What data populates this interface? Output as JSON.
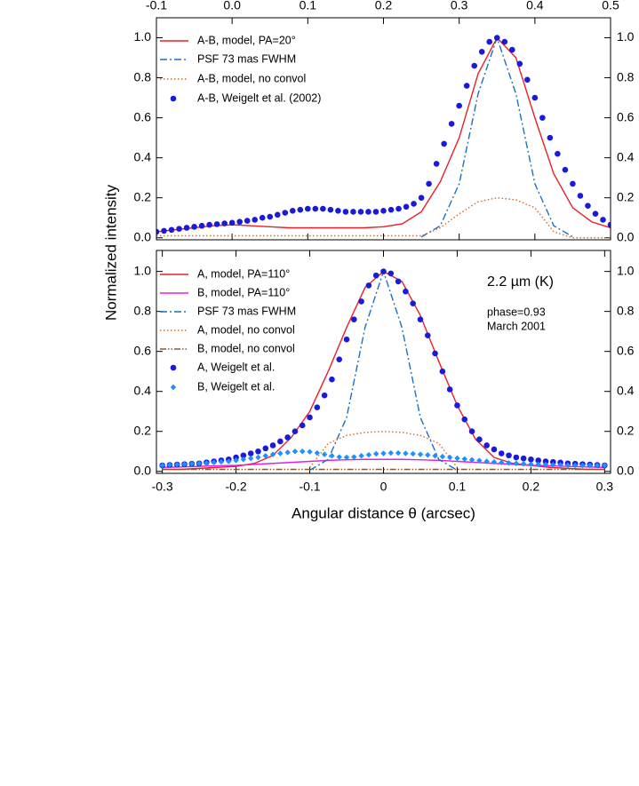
{
  "chart_data": [
    {
      "type": "line",
      "xaxis": "top",
      "xlim": [
        -0.1,
        0.5
      ],
      "ylim": [
        -0.01,
        1.1
      ],
      "xticks": [
        -0.1,
        {
          "value": 0,
          "label": "0.0"
        },
        0.1,
        0.2,
        0.3,
        0.4,
        0.5
      ],
      "yticks": [
        {
          "value": 0,
          "label": "0.0"
        },
        0.2,
        0.4,
        0.6,
        0.8,
        {
          "value": 1,
          "label": "1.0"
        }
      ],
      "x": [
        -0.1,
        -0.075,
        -0.05,
        -0.025,
        0,
        0.025,
        0.05,
        0.075,
        0.1,
        0.125,
        0.15,
        0.175,
        0.2,
        0.225,
        0.25,
        0.275,
        0.3,
        0.325,
        0.35,
        0.375,
        0.4,
        0.425,
        0.45,
        0.475,
        0.5
      ],
      "series": [
        {
          "name": "A-B, model, PA=20°",
          "color": "#e8202a",
          "style": "solid",
          "values": [
            0.03,
            0.04,
            0.05,
            0.06,
            0.065,
            0.06,
            0.055,
            0.05,
            0.05,
            0.05,
            0.05,
            0.05,
            0.055,
            0.07,
            0.13,
            0.28,
            0.5,
            0.82,
            1.0,
            0.9,
            0.6,
            0.32,
            0.15,
            0.08,
            0.05
          ]
        },
        {
          "name": "PSF 73 mas FWHM",
          "color": "#1f6fc0",
          "style": "dashdot",
          "values": [
            null,
            null,
            null,
            null,
            null,
            null,
            null,
            null,
            null,
            null,
            null,
            null,
            null,
            null,
            0.004,
            0.06,
            0.27,
            0.72,
            1.0,
            0.72,
            0.27,
            0.06,
            0.005,
            null,
            null
          ]
        },
        {
          "name": "A-B, model, no convol",
          "color": "#d2691e",
          "style": "dotted",
          "values": [
            0.01,
            0.01,
            0.01,
            0.01,
            0.01,
            0.01,
            0.01,
            0.01,
            0.01,
            0.01,
            0.01,
            0.01,
            0.01,
            0.01,
            0.01,
            0.05,
            0.12,
            0.18,
            0.2,
            0.19,
            0.15,
            0.03,
            0.0,
            0.0,
            0.0
          ]
        },
        {
          "name": "A-B, Weigelt et al. (2002)",
          "color": "#1a1adb",
          "style": "dots",
          "x": [
            -0.1,
            -0.09,
            -0.08,
            -0.07,
            -0.06,
            -0.05,
            -0.04,
            -0.03,
            -0.02,
            -0.01,
            0,
            0.01,
            0.02,
            0.03,
            0.04,
            0.05,
            0.06,
            0.07,
            0.08,
            0.09,
            0.1,
            0.11,
            0.12,
            0.13,
            0.14,
            0.15,
            0.16,
            0.17,
            0.18,
            0.19,
            0.2,
            0.21,
            0.22,
            0.23,
            0.24,
            0.25,
            0.26,
            0.27,
            0.28,
            0.29,
            0.3,
            0.31,
            0.32,
            0.33,
            0.34,
            0.35,
            0.36,
            0.37,
            0.38,
            0.39,
            0.4,
            0.41,
            0.42,
            0.43,
            0.44,
            0.45,
            0.46,
            0.47,
            0.48,
            0.49,
            0.5
          ],
          "values": [
            0.03,
            0.035,
            0.04,
            0.045,
            0.05,
            0.055,
            0.06,
            0.065,
            0.068,
            0.072,
            0.075,
            0.08,
            0.085,
            0.09,
            0.1,
            0.105,
            0.115,
            0.125,
            0.135,
            0.14,
            0.145,
            0.145,
            0.145,
            0.14,
            0.135,
            0.13,
            0.13,
            0.13,
            0.13,
            0.13,
            0.135,
            0.14,
            0.145,
            0.155,
            0.17,
            0.2,
            0.27,
            0.37,
            0.47,
            0.57,
            0.66,
            0.76,
            0.86,
            0.93,
            0.98,
            1.0,
            0.98,
            0.94,
            0.87,
            0.79,
            0.7,
            0.6,
            0.5,
            0.42,
            0.34,
            0.27,
            0.21,
            0.16,
            0.12,
            0.09,
            0.065
          ]
        }
      ]
    },
    {
      "type": "line",
      "xaxis": "bottom",
      "xlim": [
        -0.308,
        0.308
      ],
      "ylim": [
        -0.01,
        1.105
      ],
      "xticks": [
        -0.3,
        -0.2,
        -0.1,
        0,
        0.1,
        0.2,
        0.3
      ],
      "yticks": [
        {
          "value": 0,
          "label": "0.0"
        },
        0.2,
        0.4,
        0.6,
        0.8,
        {
          "value": 1,
          "label": "1.0"
        }
      ],
      "xlabel": "Angular distance  θ (arcsec)",
      "ylabel": "Normalized  intensity",
      "annotations": [
        "2.2 µm (K)",
        "phase=0.93",
        "March 2001"
      ],
      "x": [
        -0.3,
        -0.275,
        -0.25,
        -0.225,
        -0.2,
        -0.175,
        -0.15,
        -0.125,
        -0.1,
        -0.075,
        -0.05,
        -0.025,
        0,
        0.025,
        0.05,
        0.075,
        0.1,
        0.125,
        0.15,
        0.175,
        0.2,
        0.225,
        0.25,
        0.275,
        0.3
      ],
      "series": [
        {
          "name": "A, model, PA=110°",
          "color": "#e8202a",
          "style": "solid",
          "values": [
            0.01,
            0.01,
            0.015,
            0.02,
            0.025,
            0.04,
            0.08,
            0.17,
            0.3,
            0.5,
            0.72,
            0.92,
            1.0,
            0.95,
            0.78,
            0.55,
            0.33,
            0.16,
            0.07,
            0.04,
            0.03,
            0.02,
            0.015,
            0.01,
            0.01
          ]
        },
        {
          "name": "B, model, PA=110°",
          "color": "#e020e0",
          "style": "solid",
          "values": [
            0.02,
            0.022,
            0.025,
            0.028,
            0.03,
            0.035,
            0.04,
            0.045,
            0.05,
            0.055,
            0.058,
            0.06,
            0.06,
            0.06,
            0.058,
            0.055,
            0.05,
            0.045,
            0.04,
            0.035,
            0.03,
            0.028,
            0.025,
            0.022,
            0.02
          ]
        },
        {
          "name": "PSF 73 mas FWHM",
          "color": "#1f6fc0",
          "style": "dashdot",
          "values": [
            null,
            null,
            null,
            null,
            null,
            null,
            null,
            null,
            0.006,
            0.06,
            0.27,
            0.72,
            1.0,
            0.72,
            0.27,
            0.06,
            0.006,
            null,
            null,
            null,
            null,
            null,
            null,
            null,
            null
          ]
        },
        {
          "name": "A, model, no convol",
          "color": "#d2691e",
          "style": "dotted",
          "values": [
            null,
            null,
            null,
            null,
            null,
            null,
            null,
            null,
            0.02,
            0.14,
            0.18,
            0.195,
            0.2,
            0.195,
            0.18,
            0.14,
            0.02,
            null,
            null,
            null,
            null,
            null,
            null,
            null,
            null
          ]
        },
        {
          "name": "B, model, no convol",
          "color": "#8b5a2b",
          "style": "dashdotdot",
          "values": [
            0.01,
            0.01,
            0.01,
            0.01,
            0.01,
            0.01,
            0.01,
            0.01,
            0.01,
            0.01,
            0.01,
            0.01,
            0.01,
            0.01,
            0.01,
            0.01,
            0.01,
            0.01,
            0.01,
            0.01,
            0.01,
            0.01,
            0.01,
            0.01,
            0.01
          ]
        },
        {
          "name": "A, Weigelt et al.",
          "color": "#1a1adb",
          "style": "dots",
          "x": [
            -0.3,
            -0.29,
            -0.28,
            -0.27,
            -0.26,
            -0.25,
            -0.24,
            -0.23,
            -0.22,
            -0.21,
            -0.2,
            -0.19,
            -0.18,
            -0.17,
            -0.16,
            -0.15,
            -0.14,
            -0.13,
            -0.12,
            -0.11,
            -0.1,
            -0.09,
            -0.08,
            -0.07,
            -0.06,
            -0.05,
            -0.04,
            -0.03,
            -0.02,
            -0.01,
            0,
            0.01,
            0.02,
            0.03,
            0.04,
            0.05,
            0.06,
            0.07,
            0.08,
            0.09,
            0.1,
            0.11,
            0.12,
            0.13,
            0.14,
            0.15,
            0.16,
            0.17,
            0.18,
            0.19,
            0.2,
            0.21,
            0.22,
            0.23,
            0.24,
            0.25,
            0.26,
            0.27,
            0.28,
            0.29,
            0.3
          ],
          "values": [
            0.03,
            0.032,
            0.034,
            0.036,
            0.038,
            0.04,
            0.045,
            0.05,
            0.055,
            0.06,
            0.07,
            0.08,
            0.09,
            0.1,
            0.115,
            0.13,
            0.15,
            0.17,
            0.2,
            0.23,
            0.27,
            0.32,
            0.38,
            0.46,
            0.56,
            0.66,
            0.76,
            0.85,
            0.93,
            0.98,
            1.0,
            0.99,
            0.95,
            0.9,
            0.84,
            0.76,
            0.68,
            0.59,
            0.5,
            0.41,
            0.33,
            0.26,
            0.2,
            0.16,
            0.13,
            0.11,
            0.09,
            0.08,
            0.07,
            0.065,
            0.06,
            0.055,
            0.05,
            0.047,
            0.044,
            0.04,
            0.038,
            0.036,
            0.034,
            0.032,
            0.03
          ]
        },
        {
          "name": "B, Weigelt et al.",
          "color": "#1e90ff",
          "style": "diamonds",
          "x": [
            -0.3,
            -0.29,
            -0.28,
            -0.27,
            -0.26,
            -0.25,
            -0.24,
            -0.23,
            -0.22,
            -0.21,
            -0.2,
            -0.19,
            -0.18,
            -0.17,
            -0.16,
            -0.15,
            -0.14,
            -0.13,
            -0.12,
            -0.11,
            -0.1,
            -0.09,
            -0.08,
            -0.07,
            -0.06,
            -0.05,
            -0.04,
            -0.03,
            -0.02,
            -0.01,
            0,
            0.01,
            0.02,
            0.03,
            0.04,
            0.05,
            0.06,
            0.07,
            0.08,
            0.09,
            0.1,
            0.11,
            0.12,
            0.13,
            0.14,
            0.15,
            0.16,
            0.17,
            0.18,
            0.19,
            0.2,
            0.21,
            0.22,
            0.23,
            0.24,
            0.25,
            0.26,
            0.27,
            0.28,
            0.29,
            0.3
          ],
          "values": [
            0.03,
            0.032,
            0.034,
            0.036,
            0.038,
            0.04,
            0.042,
            0.045,
            0.048,
            0.05,
            0.055,
            0.06,
            0.065,
            0.07,
            0.078,
            0.085,
            0.09,
            0.095,
            0.1,
            0.1,
            0.098,
            0.092,
            0.085,
            0.078,
            0.072,
            0.07,
            0.072,
            0.078,
            0.083,
            0.088,
            0.09,
            0.092,
            0.092,
            0.09,
            0.088,
            0.085,
            0.082,
            0.078,
            0.074,
            0.07,
            0.066,
            0.062,
            0.058,
            0.054,
            0.05,
            0.047,
            0.044,
            0.042,
            0.04,
            0.038,
            0.036,
            0.035,
            0.034,
            0.033,
            0.032,
            0.031,
            0.03,
            0.03,
            0.03,
            0.03,
            0.03
          ]
        }
      ]
    }
  ]
}
